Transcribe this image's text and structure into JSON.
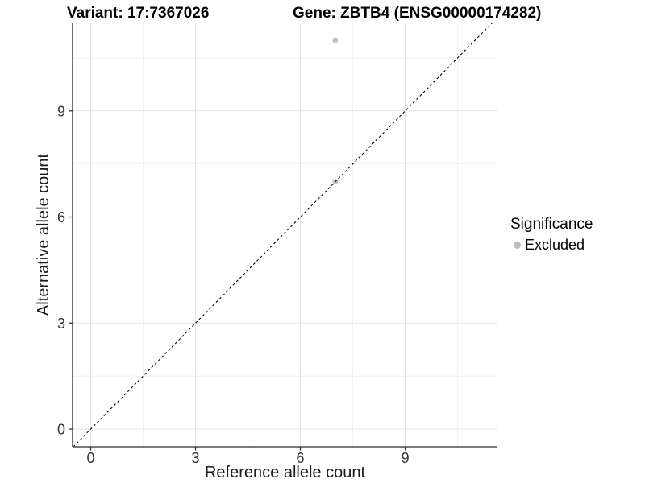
{
  "titles": {
    "variant": "Variant: 17:7367026",
    "gene": "Gene: ZBTB4 (ENSG00000174282)"
  },
  "chart_data": {
    "type": "scatter",
    "xlabel": "Reference allele count",
    "ylabel": "Alternative allele count",
    "xlim": [
      -0.52,
      11.64
    ],
    "ylim": [
      -0.5,
      11.5
    ],
    "xticks": [
      0,
      3,
      6,
      9
    ],
    "yticks": [
      0,
      3,
      6,
      9
    ],
    "xminor": [
      1.5,
      4.5,
      7.5,
      10.5
    ],
    "yminor": [
      1.5,
      4.5,
      7.5,
      10.5
    ],
    "grid": true,
    "series": [
      {
        "name": "Excluded",
        "color": "#bebebe",
        "points": [
          [
            7,
            7
          ],
          [
            7,
            11
          ]
        ]
      }
    ],
    "abline": {
      "slope": 1,
      "intercept": 0,
      "style": "dashed",
      "color": "#000000"
    },
    "legend": {
      "title": "Significance",
      "position": "right",
      "entries": [
        {
          "label": "Excluded",
          "color": "#bebebe"
        }
      ]
    }
  },
  "colors": {
    "background": "#ffffff",
    "grid_major": "#e3e3e3",
    "grid_minor": "#f1f1f1",
    "axis_line": "#4d4d4d",
    "tick": "#333333",
    "tick_label": "#333333",
    "point": "#bebebe"
  }
}
